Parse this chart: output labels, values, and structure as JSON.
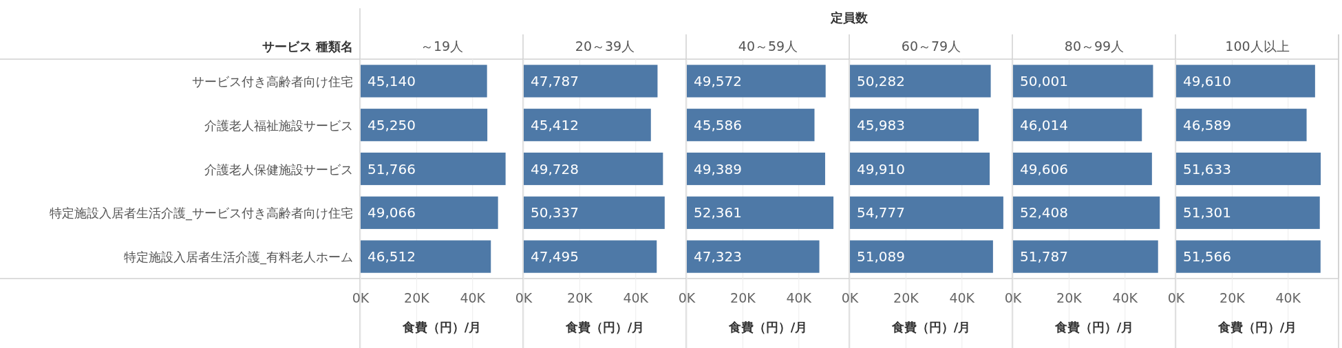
{
  "chart_data": [
    {
      "type": "bar",
      "orientation": "horizontal",
      "title": "～19人",
      "ylabel": "サービス 種類名",
      "annotations": [
        "定員数"
      ],
      "xlabel": "食費（円）/月",
      "categories": [
        "サービス付き高齢者向け住宅",
        "介護老人福祉施設サービス",
        "介護老人保健施設サービス",
        "特定施設入居者生活介護_サービス付き高齢者向け住宅",
        "特定施設入居者生活介護_有料老人ホーム"
      ],
      "values": [
        45140,
        45250,
        51766,
        49066,
        46512
      ],
      "value_labels": [
        "45,140",
        "45,250",
        "51,766",
        "49,066",
        "46,512"
      ],
      "color": "#4e79a7",
      "xlim": [
        0,
        58000
      ],
      "xticks": [
        {
          "value": 0,
          "label": "0K"
        },
        {
          "value": 20000,
          "label": "20K"
        },
        {
          "value": 40000,
          "label": "40K"
        }
      ],
      "grid": "x"
    },
    {
      "type": "bar",
      "orientation": "horizontal",
      "title": "20～39人",
      "xlabel": "食費（円）/月",
      "categories": [
        null,
        null,
        null,
        null,
        null
      ],
      "values": [
        47787,
        45412,
        49728,
        50337,
        47495
      ],
      "value_labels": [
        "47,787",
        "45,412",
        "49,728",
        "50,337",
        "47,495"
      ],
      "color": "#4e79a7",
      "xlim": [
        0,
        58000
      ],
      "xticks": [
        {
          "value": 0,
          "label": "0K"
        },
        {
          "value": 20000,
          "label": "20K"
        },
        {
          "value": 40000,
          "label": "40K"
        }
      ],
      "grid": "x"
    },
    {
      "type": "bar",
      "orientation": "horizontal",
      "title": "40～59人",
      "xlabel": "食費（円）/月",
      "categories": [
        null,
        null,
        null,
        null,
        null
      ],
      "values": [
        49572,
        45586,
        49389,
        52361,
        47323
      ],
      "value_labels": [
        "49,572",
        "45,586",
        "49,389",
        "52,361",
        "47,323"
      ],
      "color": "#4e79a7",
      "xlim": [
        0,
        58000
      ],
      "xticks": [
        {
          "value": 0,
          "label": "0K"
        },
        {
          "value": 20000,
          "label": "20K"
        },
        {
          "value": 40000,
          "label": "40K"
        }
      ],
      "grid": "x"
    },
    {
      "type": "bar",
      "orientation": "horizontal",
      "title": "60～79人",
      "xlabel": "食費（円）/月",
      "categories": [
        null,
        null,
        null,
        null,
        null
      ],
      "values": [
        50282,
        45983,
        49910,
        54777,
        51089
      ],
      "value_labels": [
        "50,282",
        "45,983",
        "49,910",
        "54,777",
        "51,089"
      ],
      "color": "#4e79a7",
      "xlim": [
        0,
        58000
      ],
      "xticks": [
        {
          "value": 0,
          "label": "0K"
        },
        {
          "value": 20000,
          "label": "20K"
        },
        {
          "value": 40000,
          "label": "40K"
        }
      ],
      "grid": "x"
    },
    {
      "type": "bar",
      "orientation": "horizontal",
      "title": "80～99人",
      "xlabel": "食費（円）/月",
      "categories": [
        null,
        null,
        null,
        null,
        null
      ],
      "values": [
        50001,
        46014,
        49606,
        52408,
        51787
      ],
      "value_labels": [
        "50,001",
        "46,014",
        "49,606",
        "52,408",
        "51,787"
      ],
      "color": "#4e79a7",
      "xlim": [
        0,
        58000
      ],
      "xticks": [
        {
          "value": 0,
          "label": "0K"
        },
        {
          "value": 20000,
          "label": "20K"
        },
        {
          "value": 40000,
          "label": "40K"
        }
      ],
      "grid": "x"
    },
    {
      "type": "bar",
      "orientation": "horizontal",
      "title": "100人以上",
      "xlabel": "食費（円）/月",
      "categories": [
        null,
        null,
        null,
        null,
        null
      ],
      "values": [
        49610,
        46589,
        51633,
        51301,
        51566
      ],
      "value_labels": [
        "49,610",
        "46,589",
        "51,633",
        "51,301",
        "51,566"
      ],
      "color": "#4e79a7",
      "xlim": [
        0,
        58000
      ],
      "xticks": [
        {
          "value": 0,
          "label": "0K"
        },
        {
          "value": 20000,
          "label": "20K"
        },
        {
          "value": 40000,
          "label": "40K"
        }
      ],
      "grid": "x"
    }
  ]
}
